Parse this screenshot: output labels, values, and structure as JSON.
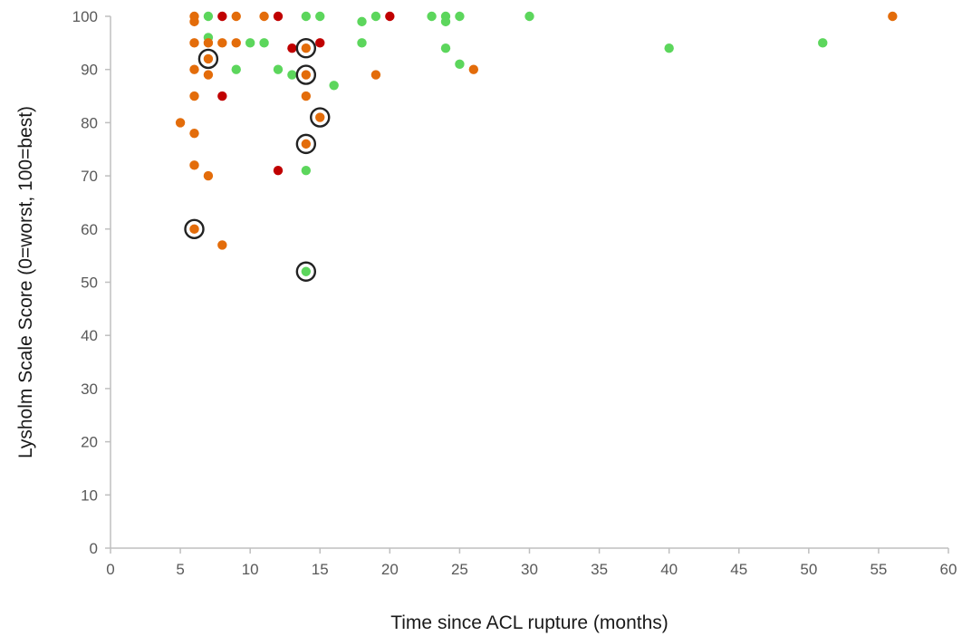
{
  "chart_data": {
    "type": "scatter",
    "xlabel": "Time since ACL rupture (months)",
    "ylabel": "Lysholm Scale Score (0=worst, 100=best)",
    "xlim": [
      0,
      60
    ],
    "ylim": [
      0,
      100
    ],
    "x_ticks": [
      0,
      5,
      10,
      15,
      20,
      25,
      30,
      35,
      40,
      45,
      50,
      55,
      60
    ],
    "y_ticks": [
      0,
      10,
      20,
      30,
      40,
      50,
      60,
      70,
      80,
      90,
      100
    ],
    "grid": false,
    "legend": "none",
    "series": [
      {
        "color": "#5cd65c",
        "points": [
          [
            7,
            100
          ],
          [
            7,
            96
          ],
          [
            9,
            90
          ],
          [
            10,
            95
          ],
          [
            11,
            95
          ],
          [
            12,
            90
          ],
          [
            13,
            89
          ],
          [
            14,
            100
          ],
          [
            14,
            71
          ],
          [
            14,
            52
          ],
          [
            15,
            100
          ],
          [
            16,
            87
          ],
          [
            18,
            99
          ],
          [
            18,
            95
          ],
          [
            19,
            100
          ],
          [
            23,
            100
          ],
          [
            24,
            100
          ],
          [
            24,
            99
          ],
          [
            24,
            94
          ],
          [
            25,
            100
          ],
          [
            25,
            91
          ],
          [
            30,
            100
          ],
          [
            40,
            94
          ],
          [
            51,
            95
          ]
        ]
      },
      {
        "color": "#e36c0a",
        "points": [
          [
            5,
            80
          ],
          [
            6,
            100
          ],
          [
            6,
            99
          ],
          [
            6,
            95
          ],
          [
            6,
            90
          ],
          [
            6,
            85
          ],
          [
            6,
            78
          ],
          [
            6,
            72
          ],
          [
            6,
            60
          ],
          [
            7,
            95
          ],
          [
            7,
            92
          ],
          [
            7,
            89
          ],
          [
            7,
            70
          ],
          [
            8,
            95
          ],
          [
            8,
            57
          ],
          [
            9,
            100
          ],
          [
            9,
            95
          ],
          [
            11,
            100
          ],
          [
            14,
            94
          ],
          [
            14,
            89
          ],
          [
            14,
            85
          ],
          [
            14,
            76
          ],
          [
            15,
            81
          ],
          [
            19,
            89
          ],
          [
            26,
            90
          ],
          [
            56,
            100
          ]
        ]
      },
      {
        "color": "#c00000",
        "points": [
          [
            8,
            100
          ],
          [
            8,
            85
          ],
          [
            12,
            100
          ],
          [
            12,
            71
          ],
          [
            13,
            94
          ],
          [
            15,
            95
          ],
          [
            20,
            100
          ]
        ]
      }
    ],
    "highlighted_points": [
      [
        7,
        92
      ],
      [
        14,
        94
      ],
      [
        14,
        89
      ],
      [
        15,
        81
      ],
      [
        14,
        76
      ],
      [
        6,
        60
      ],
      [
        14,
        52
      ]
    ]
  }
}
